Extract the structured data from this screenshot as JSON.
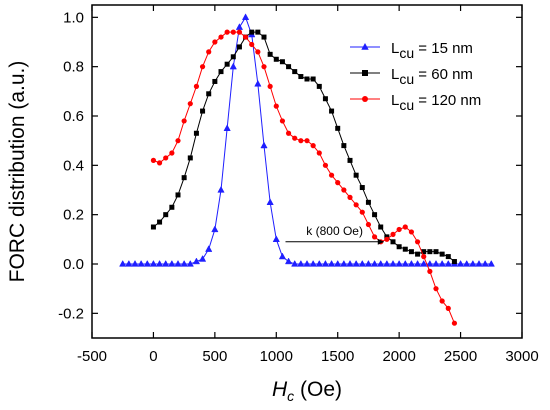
{
  "chart_data": {
    "type": "line",
    "xlabel_main": "H",
    "xlabel_sub": "c",
    "xlabel_unit": " (Oe)",
    "ylabel": "FORC distribution (a.u.)",
    "xlim": [
      -500,
      3000
    ],
    "ylim": [
      -0.3,
      1.05
    ],
    "xticks": [
      -500,
      0,
      500,
      1000,
      1500,
      2000,
      2500,
      3000
    ],
    "yticks": [
      -0.2,
      0.0,
      0.2,
      0.4,
      0.6,
      0.8,
      1.0
    ],
    "ytick_labels": [
      "-0.2",
      "0.0",
      "0.2",
      "0.4",
      "0.6",
      "0.8",
      "1.0"
    ],
    "legend_position": "top-right",
    "series": [
      {
        "legend_main": "L",
        "legend_sub": "cu",
        "legend_rest": " = 15 nm",
        "color": "#1f1fff",
        "marker": "triangle",
        "x": [
          -250,
          -200,
          -150,
          -100,
          -50,
          0,
          50,
          100,
          150,
          200,
          250,
          300,
          350,
          400,
          450,
          500,
          550,
          600,
          650,
          700,
          750,
          800,
          850,
          900,
          950,
          1000,
          1050,
          1100,
          1150,
          1200,
          1250,
          1300,
          1350,
          1400,
          1450,
          1500,
          1550,
          1600,
          1650,
          1700,
          1750,
          1800,
          1850,
          1900,
          1950,
          2000,
          2050,
          2100,
          2150,
          2200,
          2250,
          2300,
          2350,
          2400,
          2450,
          2500,
          2550,
          2600,
          2650,
          2700,
          2750
        ],
        "y": [
          0,
          0,
          0,
          0,
          0,
          0,
          0,
          0,
          0,
          0,
          0,
          0,
          0.01,
          0.02,
          0.06,
          0.14,
          0.3,
          0.55,
          0.8,
          0.96,
          1.0,
          0.93,
          0.73,
          0.48,
          0.25,
          0.1,
          0.03,
          0.01,
          0,
          0,
          0,
          0,
          0,
          0,
          0,
          0,
          0,
          0,
          0,
          0,
          0,
          0,
          0,
          0,
          0,
          0,
          0,
          0,
          0,
          0,
          0,
          0,
          0,
          0,
          0,
          0,
          0,
          0,
          0,
          0,
          0
        ]
      },
      {
        "legend_main": "L",
        "legend_sub": "cu",
        "legend_rest": " = 60 nm",
        "color": "#000000",
        "marker": "square",
        "x": [
          0,
          50,
          100,
          150,
          200,
          250,
          300,
          350,
          400,
          450,
          500,
          550,
          600,
          650,
          700,
          750,
          800,
          850,
          900,
          950,
          1000,
          1050,
          1100,
          1150,
          1200,
          1250,
          1300,
          1350,
          1400,
          1450,
          1500,
          1550,
          1600,
          1650,
          1700,
          1750,
          1800,
          1850,
          1900,
          1950,
          2000,
          2050,
          2100,
          2150,
          2200,
          2250,
          2300,
          2350,
          2400,
          2450
        ],
        "y": [
          0.15,
          0.17,
          0.2,
          0.23,
          0.28,
          0.35,
          0.43,
          0.53,
          0.62,
          0.69,
          0.74,
          0.78,
          0.81,
          0.84,
          0.88,
          0.92,
          0.94,
          0.94,
          0.92,
          0.85,
          0.83,
          0.82,
          0.8,
          0.78,
          0.76,
          0.75,
          0.75,
          0.72,
          0.67,
          0.62,
          0.55,
          0.48,
          0.42,
          0.36,
          0.31,
          0.25,
          0.2,
          0.15,
          0.11,
          0.09,
          0.07,
          0.06,
          0.05,
          0.04,
          0.05,
          0.05,
          0.05,
          0.04,
          0.03,
          0.01
        ]
      },
      {
        "legend_main": "L",
        "legend_sub": "cu",
        "legend_rest": " = 120 nm",
        "color": "#ff0000",
        "marker": "circle",
        "x": [
          0,
          50,
          100,
          150,
          200,
          250,
          300,
          350,
          400,
          450,
          500,
          550,
          600,
          650,
          700,
          750,
          800,
          850,
          900,
          950,
          1000,
          1050,
          1100,
          1150,
          1200,
          1250,
          1300,
          1350,
          1400,
          1450,
          1500,
          1550,
          1600,
          1650,
          1700,
          1750,
          1800,
          1850,
          1900,
          1950,
          2000,
          2050,
          2100,
          2150,
          2200,
          2250,
          2300,
          2350,
          2400,
          2450
        ],
        "y": [
          0.42,
          0.41,
          0.43,
          0.45,
          0.5,
          0.58,
          0.65,
          0.72,
          0.8,
          0.86,
          0.9,
          0.92,
          0.94,
          0.94,
          0.94,
          0.92,
          0.89,
          0.86,
          0.8,
          0.72,
          0.64,
          0.58,
          0.53,
          0.51,
          0.5,
          0.5,
          0.48,
          0.45,
          0.4,
          0.36,
          0.33,
          0.3,
          0.27,
          0.24,
          0.21,
          0.16,
          0.11,
          0.09,
          0.1,
          0.12,
          0.14,
          0.15,
          0.13,
          0.09,
          0.03,
          -0.03,
          -0.1,
          -0.15,
          -0.18,
          -0.24
        ]
      }
    ],
    "annotation": {
      "text": "k (800 Oe)",
      "x_start": 1075,
      "x_end": 1875,
      "y": 0.09
    }
  }
}
